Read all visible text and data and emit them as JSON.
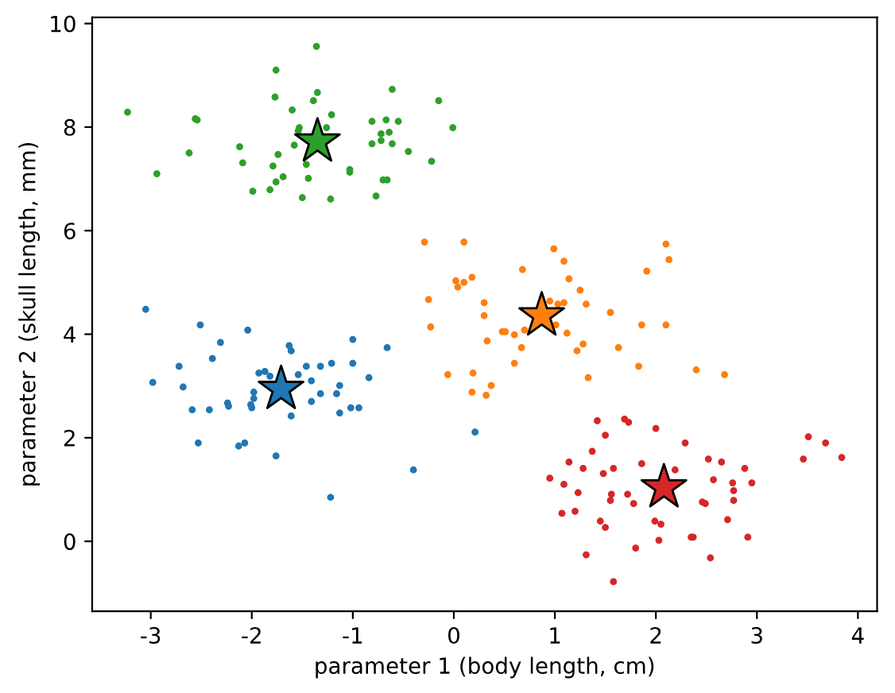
{
  "chart_data": {
    "type": "scatter",
    "xlabel": "parameter 1 (body length, cm)",
    "ylabel": "parameter 2 (skull length, mm)",
    "xlim": [
      -3.58,
      4.19
    ],
    "xticks": [
      -3,
      -2,
      -1,
      0,
      1,
      2,
      3,
      4
    ],
    "ylim": [
      -1.35,
      10.12
    ],
    "yticks": [
      0,
      2,
      4,
      6,
      8,
      10
    ],
    "marker": "circle",
    "series": [
      {
        "color": "#1f77b4",
        "x": [
          -3.05,
          -2.98,
          -2.51,
          -2.72,
          -2.68,
          -2.59,
          -2.42,
          -2.53,
          -2.39,
          -2.31,
          -2.04,
          -2.24,
          -2.23,
          -2.13,
          -2.07,
          -2.01,
          -2.0,
          -1.98,
          -1.98,
          -1.93,
          -1.87,
          -1.82,
          -1.76,
          -1.63,
          -1.61,
          -1.61,
          -1.54,
          -1.46,
          -1.41,
          -1.41,
          -1.32,
          -1.32,
          -1.21,
          -1.13,
          -1.16,
          -1.13,
          -1.02,
          -0.94,
          -1.0,
          -1.0,
          -0.84,
          -0.66,
          -0.4,
          -1.22,
          0.21
        ],
        "values": [
          4.48,
          3.07,
          4.18,
          3.38,
          2.98,
          2.54,
          2.54,
          1.9,
          3.53,
          3.84,
          4.08,
          2.67,
          2.61,
          1.84,
          1.9,
          2.64,
          2.58,
          2.88,
          2.76,
          3.25,
          3.28,
          3.19,
          1.65,
          3.78,
          3.68,
          2.42,
          3.22,
          3.38,
          3.1,
          2.7,
          3.38,
          2.85,
          3.44,
          3.01,
          2.85,
          2.48,
          2.58,
          2.58,
          3.9,
          3.44,
          3.16,
          3.74,
          1.38,
          0.85,
          2.11
        ]
      },
      {
        "color": "#ff7f0e",
        "x": [
          -0.29,
          0.1,
          0.99,
          1.09,
          2.1,
          2.13,
          1.91,
          0.68,
          1.14,
          1.25,
          1.31,
          0.02,
          0.1,
          0.18,
          0.04,
          -0.25,
          -0.23,
          0.3,
          0.3,
          0.33,
          0.48,
          0.51,
          0.6,
          0.7,
          0.67,
          0.6,
          0.95,
          1.03,
          1.09,
          1.01,
          1.12,
          1.28,
          1.22,
          1.33,
          1.55,
          1.63,
          1.86,
          2.1,
          1.83,
          2.4,
          2.68,
          -0.06,
          0.19,
          0.18,
          0.32,
          0.37
        ],
        "values": [
          5.78,
          5.78,
          5.65,
          5.41,
          5.74,
          5.44,
          5.22,
          5.25,
          5.07,
          4.85,
          4.58,
          5.03,
          5.0,
          5.1,
          4.91,
          4.67,
          4.14,
          4.61,
          4.36,
          3.87,
          4.05,
          4.05,
          3.99,
          4.08,
          3.74,
          3.44,
          4.64,
          4.58,
          4.61,
          4.18,
          4.02,
          3.81,
          3.68,
          3.16,
          4.42,
          3.74,
          4.18,
          4.18,
          3.38,
          3.31,
          3.22,
          3.22,
          3.25,
          2.88,
          2.82,
          3.01
        ]
      },
      {
        "color": "#2ca02c",
        "x": [
          -3.23,
          -2.56,
          -2.54,
          -2.94,
          -2.62,
          -2.12,
          -2.09,
          -1.99,
          -1.82,
          -1.76,
          -1.69,
          -1.79,
          -1.74,
          -1.76,
          -1.77,
          -1.36,
          -1.35,
          -1.39,
          -1.6,
          -1.21,
          -1.53,
          -1.54,
          -1.26,
          -1.58,
          -1.46,
          -1.44,
          -1.5,
          -1.22,
          -1.03,
          -1.03,
          -0.7,
          -0.66,
          -0.77,
          -0.81,
          -0.67,
          -0.55,
          -0.72,
          -0.64,
          -0.72,
          -0.81,
          -0.61,
          -0.45,
          -0.61,
          -0.15,
          -0.01,
          -0.22
        ],
        "values": [
          8.29,
          8.16,
          8.14,
          7.1,
          7.5,
          7.62,
          7.31,
          6.76,
          6.79,
          6.94,
          7.04,
          7.25,
          7.47,
          9.1,
          8.58,
          9.56,
          8.67,
          8.51,
          8.33,
          8.24,
          7.99,
          7.93,
          7.99,
          7.65,
          7.28,
          7.01,
          6.64,
          6.61,
          7.18,
          7.13,
          6.98,
          6.98,
          6.67,
          8.11,
          8.14,
          8.11,
          7.87,
          7.9,
          7.74,
          7.68,
          7.68,
          7.53,
          8.73,
          8.51,
          7.99,
          7.34
        ]
      },
      {
        "color": "#d62728",
        "x": [
          1.42,
          1.69,
          1.73,
          1.5,
          2.0,
          2.29,
          1.37,
          1.14,
          1.28,
          1.58,
          1.48,
          1.86,
          2.19,
          2.52,
          2.65,
          2.88,
          2.57,
          2.76,
          2.95,
          2.77,
          2.77,
          2.46,
          2.49,
          2.71,
          2.91,
          2.54,
          2.35,
          2.37,
          2.03,
          1.99,
          2.05,
          1.78,
          1.72,
          1.56,
          1.55,
          1.8,
          1.58,
          1.31,
          1.45,
          1.5,
          1.07,
          1.2,
          0.95,
          1.09,
          1.23,
          3.51,
          3.68,
          3.46,
          3.84
        ],
        "values": [
          2.33,
          2.36,
          2.3,
          2.05,
          2.18,
          1.9,
          1.74,
          1.53,
          1.41,
          1.41,
          1.31,
          1.5,
          1.38,
          1.59,
          1.53,
          1.41,
          1.19,
          1.13,
          1.13,
          0.98,
          0.79,
          0.76,
          0.73,
          0.42,
          0.08,
          -0.32,
          0.08,
          0.08,
          0.02,
          0.39,
          0.33,
          0.73,
          0.91,
          0.91,
          0.79,
          -0.13,
          -0.78,
          -0.26,
          0.39,
          0.27,
          0.54,
          0.58,
          1.22,
          1.1,
          0.94,
          2.02,
          1.9,
          1.59,
          1.62
        ]
      },
      {
        "color": "#1f77b4",
        "marker": "star",
        "x": [
          -1.71
        ],
        "values": [
          2.94
        ]
      },
      {
        "color": "#ff7f0e",
        "marker": "star",
        "x": [
          0.87
        ],
        "values": [
          4.36
        ]
      },
      {
        "color": "#2ca02c",
        "marker": "star",
        "x": [
          -1.35
        ],
        "values": [
          7.72
        ]
      },
      {
        "color": "#d62728",
        "marker": "star",
        "x": [
          2.08
        ],
        "values": [
          1.04
        ]
      }
    ]
  }
}
